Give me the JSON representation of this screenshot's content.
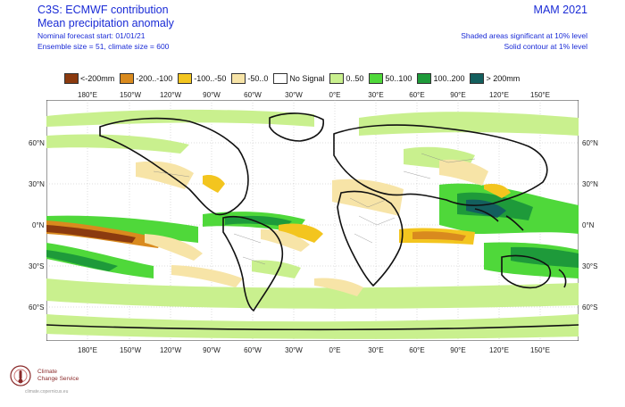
{
  "header": {
    "title": "C3S: ECMWF contribution",
    "subtitle": "Mean precipitation anomaly",
    "start": "Nominal forecast start: 01/01/21",
    "ensemble": "Ensemble size = 51, climate size = 600",
    "period": "MAM 2021",
    "sig1": "Shaded areas significant at 10% level",
    "sig2": "Solid contour at 1% level"
  },
  "legend": [
    {
      "label": "<-200mm",
      "color": "#8b3a0f"
    },
    {
      "label": "-200..-100",
      "color": "#d98a1e"
    },
    {
      "label": "-100..-50",
      "color": "#f3c51f"
    },
    {
      "label": "-50..0",
      "color": "#f7e4a7"
    },
    {
      "label": "No Signal",
      "color": "#ffffff"
    },
    {
      "label": "0..50",
      "color": "#c9f08e"
    },
    {
      "label": "50..100",
      "color": "#4fd83a"
    },
    {
      "label": "100..200",
      "color": "#1e9a3a"
    },
    {
      "label": "> 200mm",
      "color": "#135f5e"
    }
  ],
  "lon_labels": [
    "180°E",
    "150°W",
    "120°W",
    "90°W",
    "60°W",
    "30°W",
    "0°E",
    "30°E",
    "60°E",
    "90°E",
    "120°E",
    "150°E"
  ],
  "lat_labels": [
    "60°N",
    "30°N",
    "0°N",
    "30°S",
    "60°S"
  ],
  "logo": {
    "line1": "Climate",
    "line2": "Change Service",
    "url": "climate.copernicus.eu"
  }
}
